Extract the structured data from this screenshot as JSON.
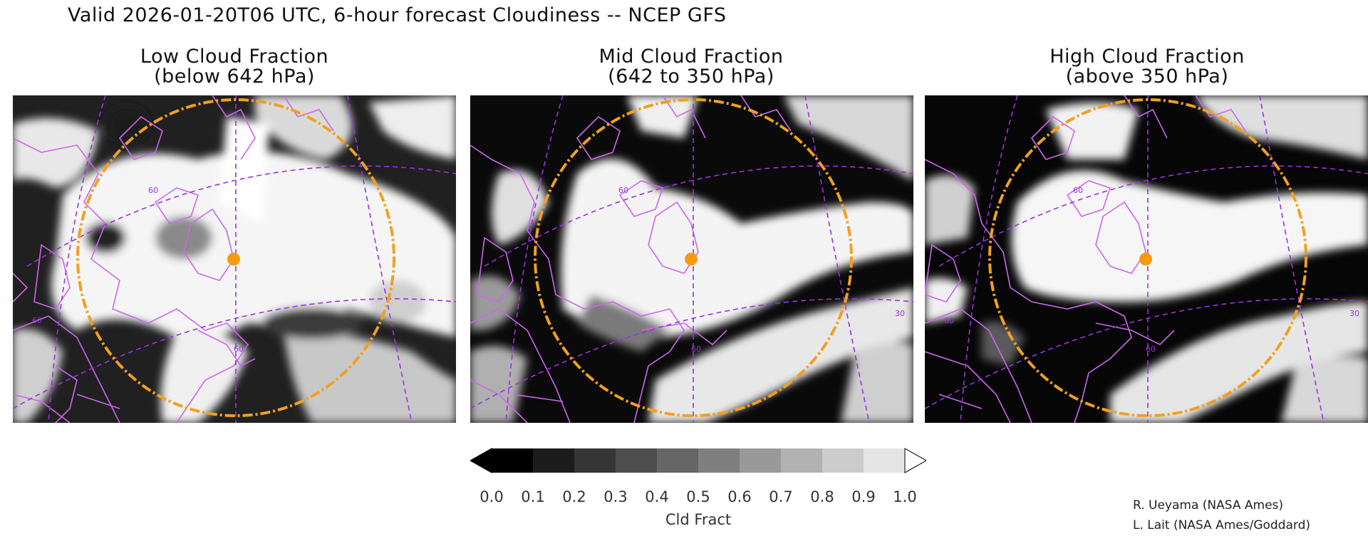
{
  "title": "Valid 2026-01-20T06 UTC, 6-hour forecast Cloudiness -- NCEP GFS",
  "panels": [
    {
      "title": "Low Cloud Fraction",
      "subtitle": "(below 642 hPa)"
    },
    {
      "title": "Mid Cloud Fraction",
      "subtitle": "(642 to 350 hPa)"
    },
    {
      "title": "High Cloud Fraction",
      "subtitle": "(above 350 hPa)"
    }
  ],
  "map_labels": {
    "lat60": "60",
    "lat30": "30"
  },
  "colorbar": {
    "label": "Cld Fract",
    "ticks": [
      "0.0",
      "0.1",
      "0.2",
      "0.3",
      "0.4",
      "0.5",
      "0.6",
      "0.7",
      "0.8",
      "0.9",
      "1.0"
    ],
    "colors": [
      "#000000",
      "#1c1c1c",
      "#353535",
      "#4d4d4d",
      "#666666",
      "#7f7f7f",
      "#999999",
      "#b2b2b2",
      "#cccccc",
      "#e5e5e5"
    ]
  },
  "credits": [
    "R. Ueyama (NASA Ames)",
    "L. Lait (NASA Ames/Goddard)"
  ],
  "colors": {
    "coastline": "#cc66ee",
    "graticule": "#9933dd",
    "range_ring": "#f0a020",
    "marker": "#f59a10"
  }
}
